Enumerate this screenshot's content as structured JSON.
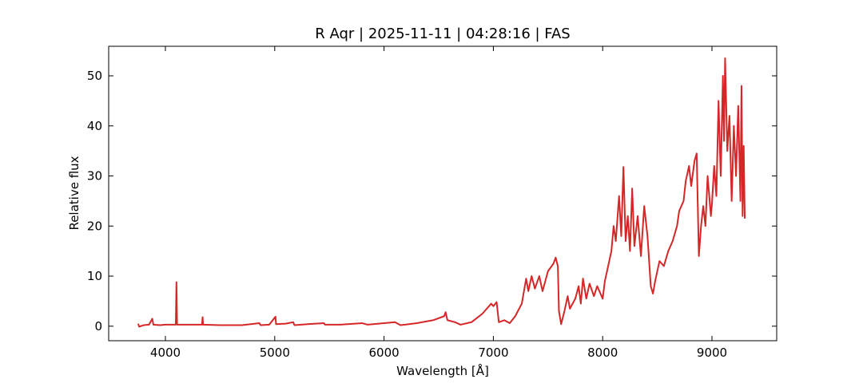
{
  "chart_data": {
    "type": "line",
    "title": "R Aqr | 2025-11-11 | 04:28:16 | FAS",
    "x_label": "Wavelength [Å]",
    "y_label": "Relative flux",
    "color": "#d62728",
    "xlim": [
      3481,
      9592
    ],
    "ylim": [
      -2.9,
      55.9
    ],
    "xticks": [
      4000,
      5000,
      6000,
      7000,
      8000,
      9000
    ],
    "yticks": [
      0,
      10,
      20,
      30,
      40,
      50
    ],
    "x": [
      3750,
      3760,
      3800,
      3850,
      3880,
      3890,
      3950,
      4000,
      4095,
      4101,
      4107,
      4200,
      4335,
      4340,
      4345,
      4500,
      4700,
      4860,
      4870,
      4950,
      5007,
      5012,
      5100,
      5170,
      5180,
      5300,
      5450,
      5460,
      5600,
      5800,
      5850,
      6000,
      6100,
      6150,
      6300,
      6450,
      6550,
      6563,
      6580,
      6650,
      6700,
      6800,
      6900,
      6980,
      7000,
      7030,
      7050,
      7100,
      7150,
      7200,
      7260,
      7300,
      7320,
      7350,
      7380,
      7420,
      7450,
      7500,
      7550,
      7570,
      7590,
      7600,
      7620,
      7650,
      7680,
      7700,
      7750,
      7780,
      7800,
      7820,
      7850,
      7880,
      7920,
      7950,
      8000,
      8020,
      8050,
      8080,
      8100,
      8120,
      8150,
      8170,
      8190,
      8210,
      8230,
      8250,
      8270,
      8290,
      8320,
      8350,
      8380,
      8410,
      8440,
      8460,
      8480,
      8520,
      8560,
      8600,
      8640,
      8680,
      8700,
      8740,
      8760,
      8790,
      8810,
      8840,
      8860,
      8880,
      8900,
      8920,
      8940,
      8960,
      8990,
      9000,
      9020,
      9040,
      9060,
      9080,
      9100,
      9110,
      9120,
      9140,
      9160,
      9180,
      9200,
      9220,
      9240,
      9260,
      9270,
      9280,
      9290,
      9300
    ],
    "values": [
      0.5,
      -0.1,
      0.2,
      0.3,
      1.5,
      0.3,
      0.2,
      0.3,
      0.3,
      8.8,
      0.3,
      0.3,
      0.3,
      1.8,
      0.3,
      0.2,
      0.2,
      0.6,
      0.2,
      0.3,
      1.9,
      0.4,
      0.5,
      0.8,
      0.2,
      0.4,
      0.6,
      0.3,
      0.3,
      0.6,
      0.3,
      0.6,
      0.8,
      0.2,
      0.6,
      1.2,
      2.0,
      2.8,
      1.2,
      0.8,
      0.3,
      0.8,
      2.5,
      4.5,
      4.0,
      4.8,
      0.8,
      1.2,
      0.6,
      2.0,
      4.5,
      9.5,
      7.0,
      10.0,
      7.5,
      10.0,
      7.0,
      11.0,
      12.5,
      13.7,
      12.0,
      3.0,
      0.4,
      3.0,
      6.0,
      3.5,
      5.5,
      8.0,
      4.5,
      9.5,
      5.5,
      8.5,
      6.0,
      8.0,
      5.5,
      9.0,
      12.0,
      15.0,
      20.0,
      17.0,
      26.0,
      18.0,
      31.8,
      17.0,
      22.0,
      15.0,
      27.5,
      16.0,
      22.0,
      14.0,
      24.0,
      18.0,
      8.0,
      6.5,
      9.0,
      13.0,
      12.0,
      15.0,
      17.0,
      20.0,
      23.0,
      25.0,
      29.0,
      32.0,
      28.0,
      33.0,
      34.5,
      14.0,
      20.0,
      24.0,
      20.0,
      30.0,
      22.0,
      24.5,
      32.0,
      26.0,
      45.0,
      30.0,
      50.0,
      37.0,
      53.5,
      35.0,
      42.0,
      25.0,
      40.0,
      30.0,
      44.0,
      25.0,
      48.0,
      22.0,
      36.0,
      21.5
    ]
  }
}
